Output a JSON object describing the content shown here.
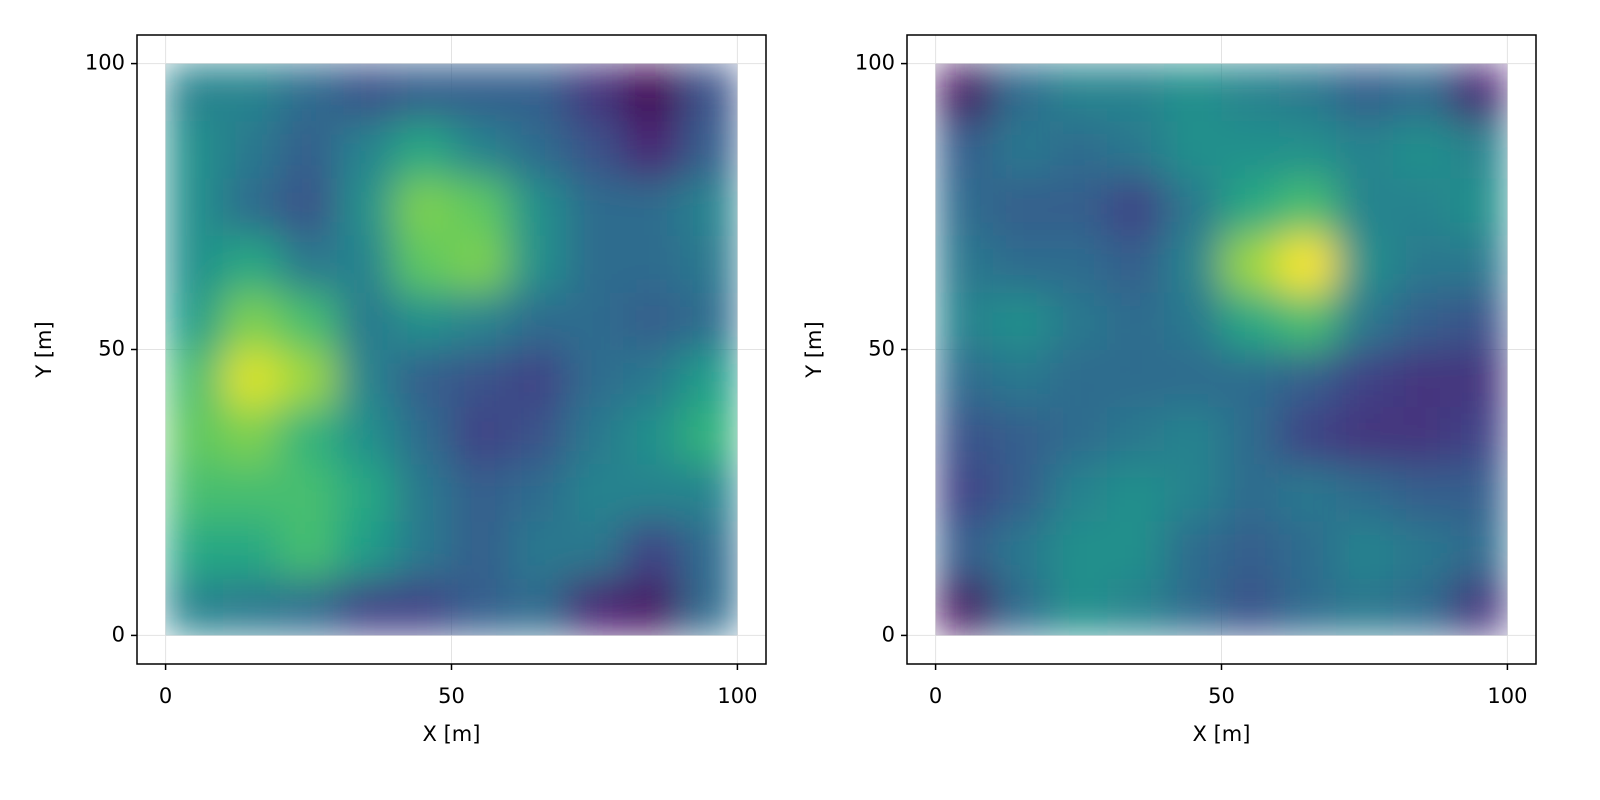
{
  "chart_data": [
    {
      "type": "heatmap",
      "xlabel": "X [m]",
      "ylabel": "Y [m]",
      "xlim": [
        -5,
        105
      ],
      "ylim": [
        -5,
        105
      ],
      "xticks": [
        0,
        50,
        100
      ],
      "yticks": [
        0,
        50,
        100
      ],
      "grid": true,
      "colormap": "viridis",
      "xbins": [
        0,
        10,
        20,
        30,
        40,
        50,
        60,
        70,
        80,
        90,
        100
      ],
      "ybins": [
        0,
        10,
        20,
        30,
        40,
        50,
        60,
        70,
        80,
        90,
        100
      ],
      "z": [
        [
          0.45,
          0.4,
          0.35,
          0.2,
          0.2,
          0.3,
          0.35,
          0.1,
          0.05,
          0.35
        ],
        [
          0.6,
          0.6,
          0.7,
          0.55,
          0.4,
          0.3,
          0.4,
          0.4,
          0.2,
          0.35
        ],
        [
          0.7,
          0.7,
          0.7,
          0.6,
          0.4,
          0.3,
          0.35,
          0.45,
          0.45,
          0.45
        ],
        [
          0.75,
          0.8,
          0.65,
          0.5,
          0.35,
          0.2,
          0.25,
          0.4,
          0.5,
          0.65
        ],
        [
          0.7,
          0.95,
          0.85,
          0.45,
          0.3,
          0.25,
          0.2,
          0.35,
          0.4,
          0.55
        ],
        [
          0.55,
          0.8,
          0.7,
          0.4,
          0.5,
          0.45,
          0.35,
          0.35,
          0.3,
          0.35
        ],
        [
          0.5,
          0.6,
          0.4,
          0.45,
          0.75,
          0.8,
          0.5,
          0.35,
          0.35,
          0.4
        ],
        [
          0.5,
          0.35,
          0.25,
          0.5,
          0.8,
          0.75,
          0.5,
          0.35,
          0.35,
          0.45
        ],
        [
          0.5,
          0.4,
          0.3,
          0.45,
          0.6,
          0.45,
          0.35,
          0.25,
          0.1,
          0.3
        ],
        [
          0.45,
          0.45,
          0.35,
          0.25,
          0.3,
          0.3,
          0.3,
          0.15,
          0.0,
          0.25
        ]
      ]
    },
    {
      "type": "heatmap",
      "xlabel": "X [m]",
      "ylabel": "Y [m]",
      "xlim": [
        -5,
        105
      ],
      "ylim": [
        -5,
        105
      ],
      "xticks": [
        0,
        50,
        100
      ],
      "yticks": [
        0,
        50,
        100
      ],
      "grid": true,
      "colormap": "viridis",
      "xbins": [
        0,
        10,
        20,
        30,
        40,
        50,
        60,
        70,
        80,
        90,
        100
      ],
      "ybins": [
        0,
        10,
        20,
        30,
        40,
        50,
        60,
        70,
        80,
        90,
        100
      ],
      "z": [
        [
          0.05,
          0.35,
          0.5,
          0.45,
          0.35,
          0.25,
          0.35,
          0.4,
          0.35,
          0.15
        ],
        [
          0.3,
          0.4,
          0.5,
          0.5,
          0.35,
          0.3,
          0.35,
          0.45,
          0.4,
          0.35
        ],
        [
          0.2,
          0.3,
          0.45,
          0.5,
          0.45,
          0.35,
          0.4,
          0.35,
          0.3,
          0.3
        ],
        [
          0.25,
          0.3,
          0.35,
          0.4,
          0.45,
          0.35,
          0.2,
          0.15,
          0.15,
          0.2
        ],
        [
          0.35,
          0.4,
          0.35,
          0.35,
          0.35,
          0.35,
          0.3,
          0.2,
          0.15,
          0.15
        ],
        [
          0.45,
          0.5,
          0.4,
          0.35,
          0.4,
          0.6,
          0.7,
          0.4,
          0.3,
          0.25
        ],
        [
          0.4,
          0.35,
          0.35,
          0.3,
          0.45,
          0.85,
          1.0,
          0.5,
          0.4,
          0.4
        ],
        [
          0.35,
          0.3,
          0.3,
          0.2,
          0.4,
          0.6,
          0.7,
          0.45,
          0.45,
          0.5
        ],
        [
          0.3,
          0.4,
          0.35,
          0.4,
          0.5,
          0.5,
          0.5,
          0.45,
          0.5,
          0.45
        ],
        [
          0.05,
          0.35,
          0.45,
          0.45,
          0.5,
          0.45,
          0.4,
          0.3,
          0.35,
          0.1
        ]
      ]
    }
  ]
}
